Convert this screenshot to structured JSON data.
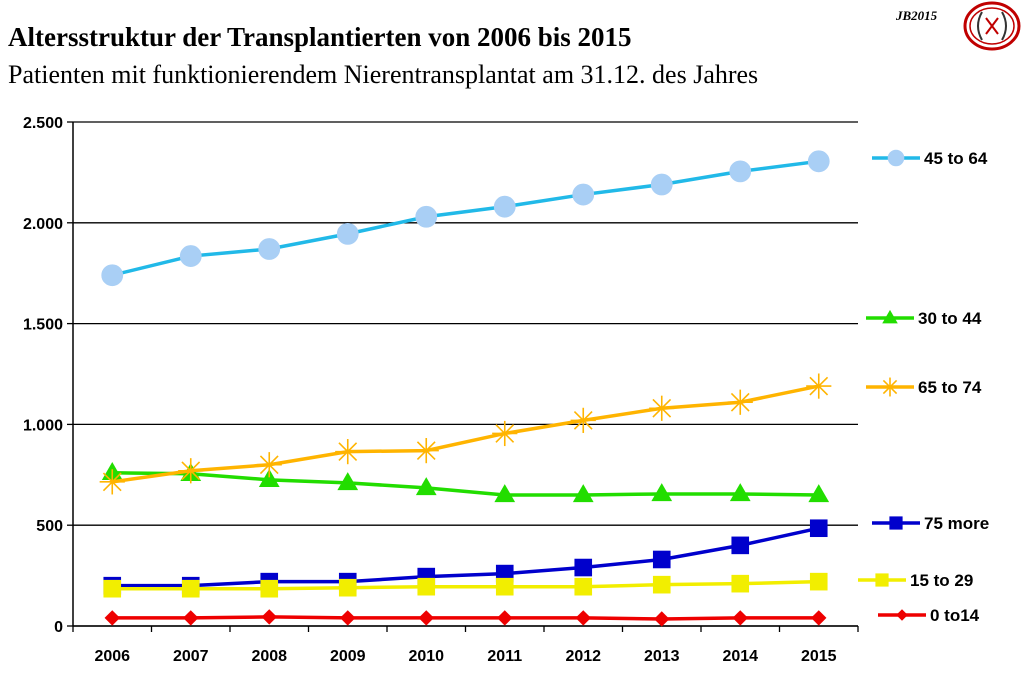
{
  "header": {
    "title": "Altersstruktur der Transplantierten von 2006 bis 2015",
    "subtitle": "Patienten mit funktionierendem Nierentransplantat am 31.12. des Jahres",
    "badge": "JB2015"
  },
  "chart_data": {
    "type": "line",
    "title": "Altersstruktur der Transplantierten von 2006 bis 2015",
    "subtitle": "Patienten mit funktionierendem Nierentransplantat am 31.12. des Jahres",
    "xlabel": "",
    "ylabel": "",
    "ylim": [
      0,
      2500
    ],
    "yticks": [
      0,
      500,
      1000,
      1500,
      2000,
      2500
    ],
    "ytick_labels": [
      "0",
      "500",
      "1.000",
      "1.500",
      "2.000",
      "2.500"
    ],
    "categories": [
      "2006",
      "2007",
      "2008",
      "2009",
      "2010",
      "2011",
      "2012",
      "2013",
      "2014",
      "2015"
    ],
    "grid": true,
    "legend_position": "right",
    "series": [
      {
        "name": "45 to 64",
        "color": "#21b9e8",
        "marker": "circle",
        "values": [
          1740,
          1835,
          1870,
          1945,
          2030,
          2080,
          2140,
          2190,
          2255,
          2305
        ]
      },
      {
        "name": "30 to 44",
        "color": "#22dd00",
        "marker": "triangle",
        "values": [
          760,
          755,
          725,
          710,
          685,
          650,
          650,
          655,
          655,
          650
        ]
      },
      {
        "name": "65 to 74",
        "color": "#ffb400",
        "marker": "asterisk",
        "values": [
          715,
          770,
          800,
          865,
          870,
          955,
          1020,
          1080,
          1110,
          1190
        ]
      },
      {
        "name": "75 more",
        "color": "#0000cc",
        "marker": "square",
        "values": [
          200,
          200,
          220,
          220,
          245,
          260,
          290,
          330,
          400,
          485
        ]
      },
      {
        "name": "15 to 29",
        "color": "#f2ee00",
        "marker": "square",
        "values": [
          185,
          185,
          185,
          190,
          195,
          195,
          195,
          205,
          210,
          220
        ]
      },
      {
        "name": "0 to14",
        "color": "#ee0000",
        "marker": "diamond",
        "values": [
          40,
          40,
          45,
          40,
          40,
          40,
          40,
          35,
          40,
          40
        ]
      }
    ]
  }
}
